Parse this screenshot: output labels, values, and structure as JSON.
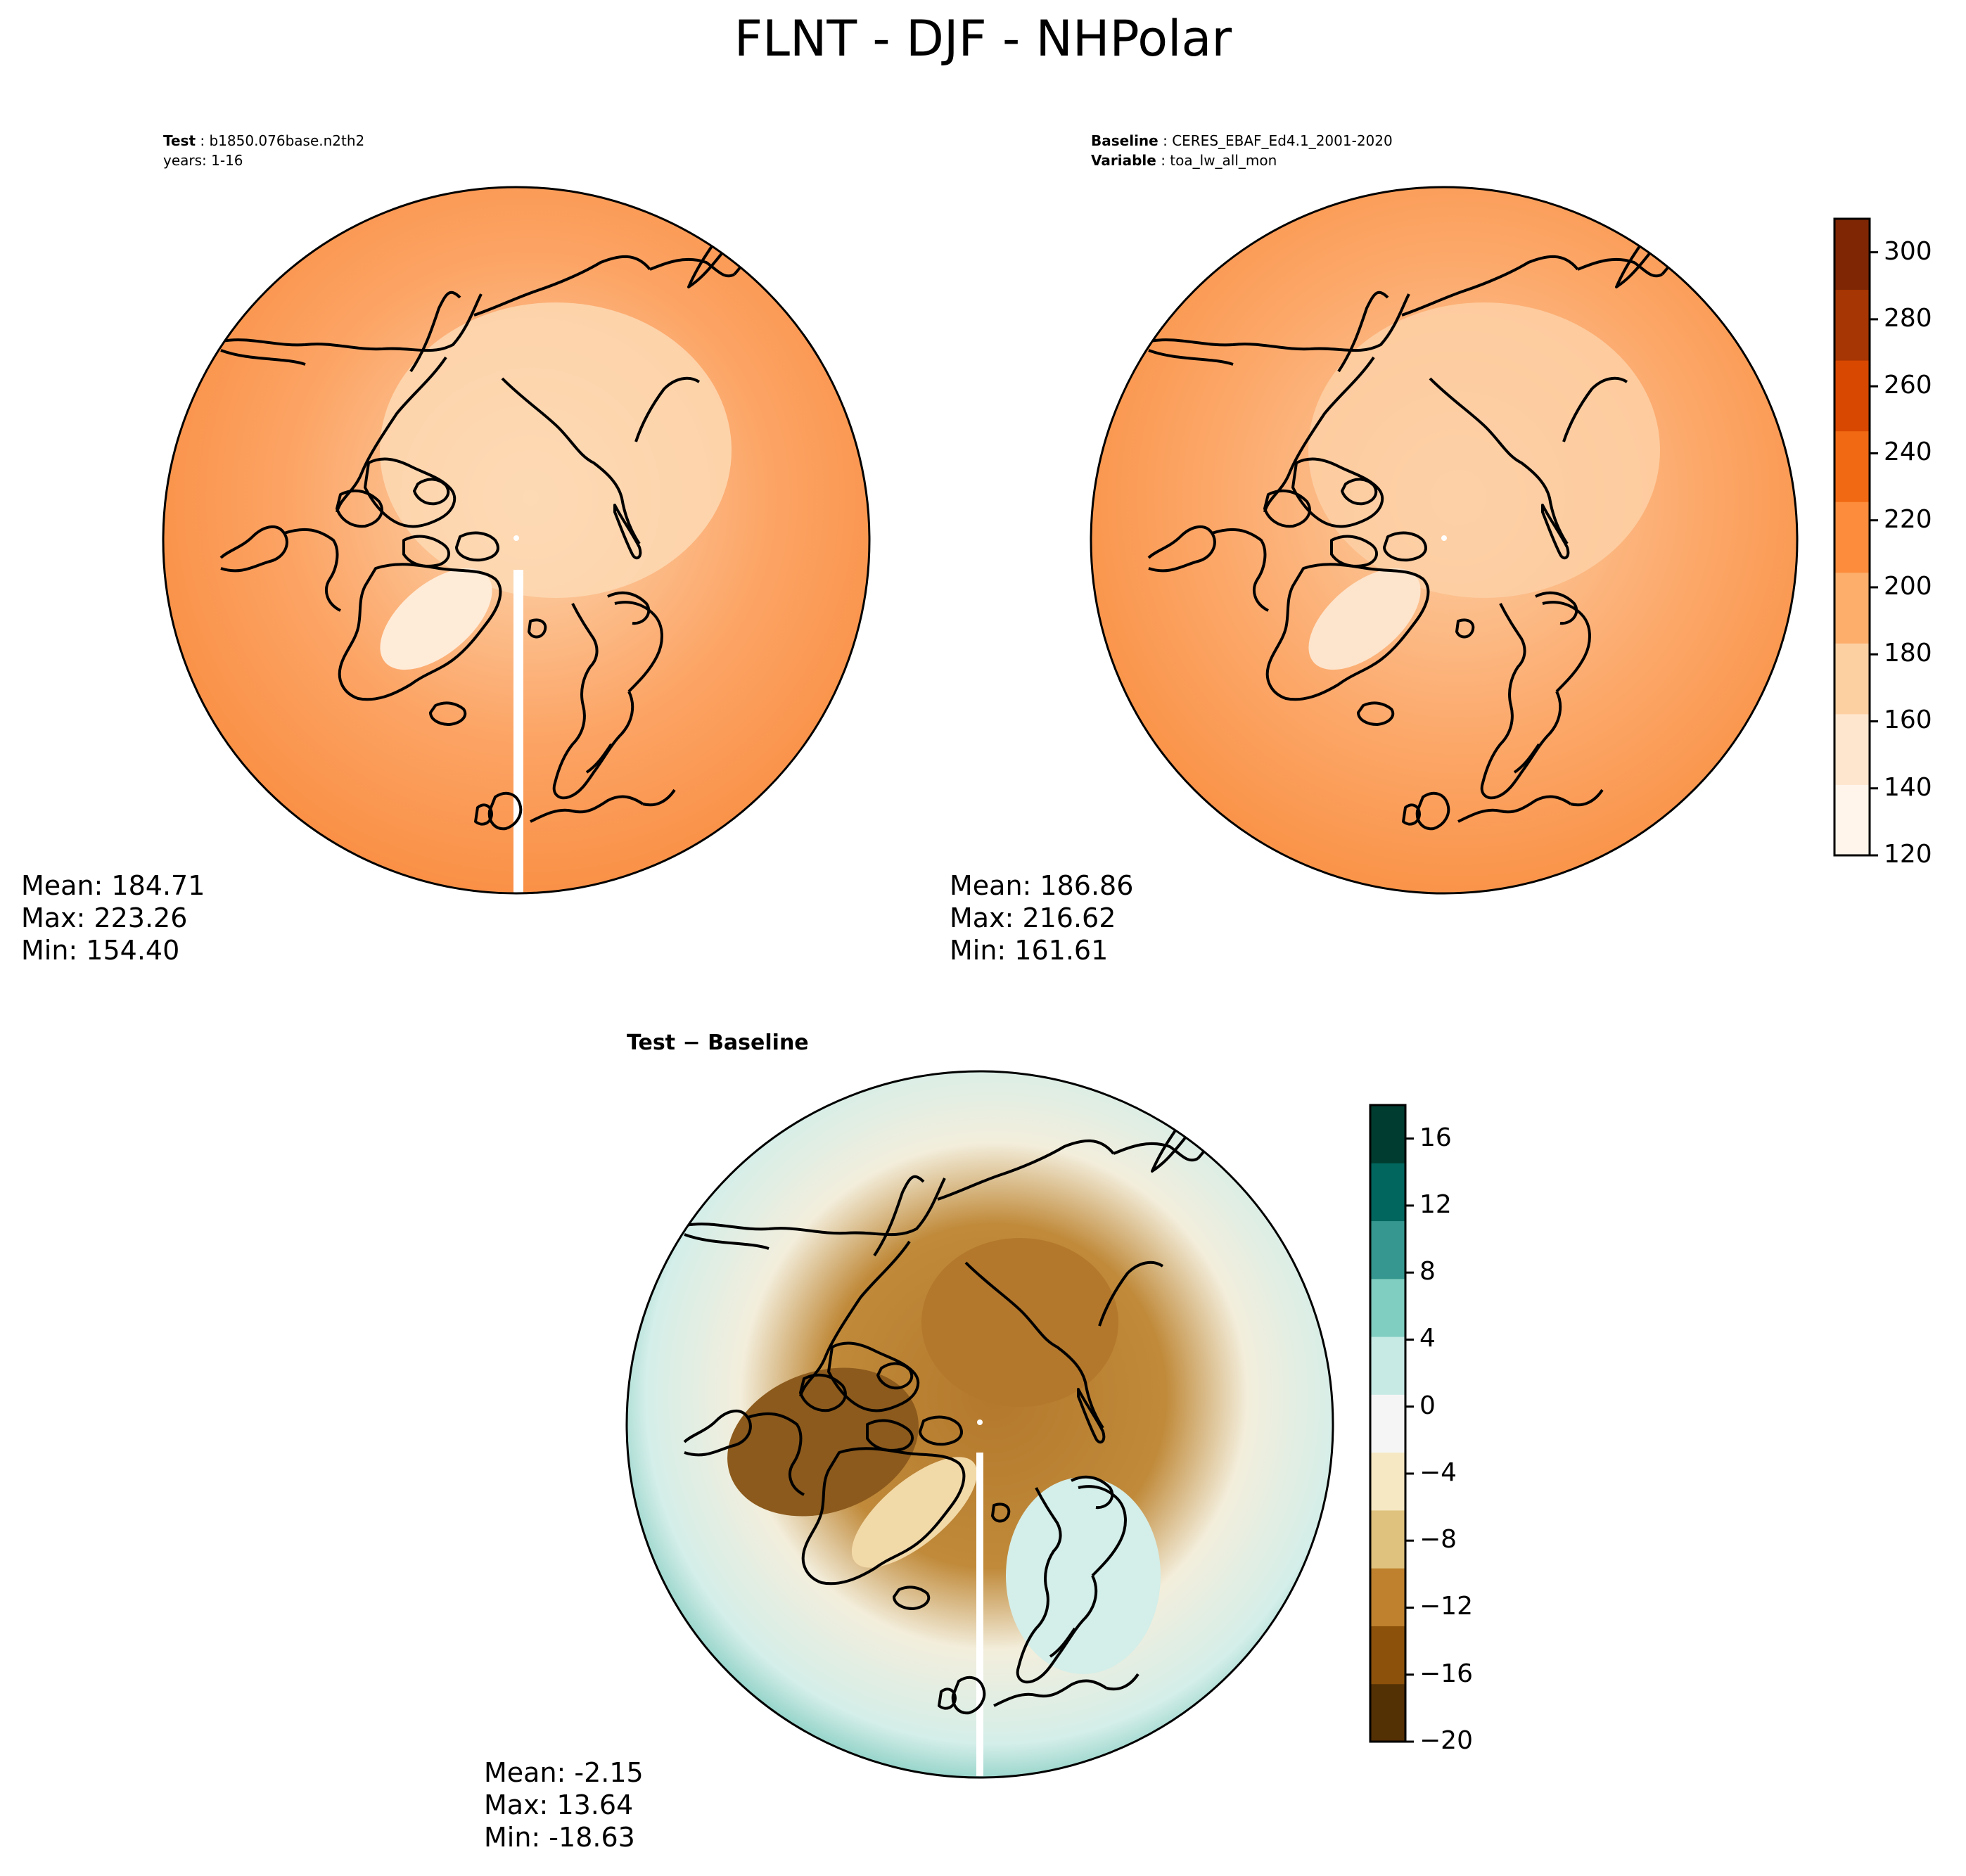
{
  "title": "FLNT - DJF - NHPolar",
  "panels": {
    "test": {
      "label": "Test",
      "name": "b1850.076base.n2th2",
      "years": "years: 1-16",
      "stats": [
        "Mean: 184.71",
        "Max: 223.26",
        "Min: 154.40"
      ]
    },
    "baseline": {
      "label": "Baseline",
      "name": "CERES_EBAF_Ed4.1_2001-2020",
      "variable_label": "Variable",
      "variable": "toa_lw_all_mon",
      "stats": [
        "Mean: 186.86",
        "Max: 216.62",
        "Min: 161.61"
      ]
    },
    "diff": {
      "title_a": "Test",
      "title_sep": " − ",
      "title_b": "Baseline",
      "stats": [
        "Mean: -2.15",
        "Max: 13.64",
        "Min: -18.63"
      ]
    }
  },
  "colorbars": {
    "field": {
      "range": [
        120,
        310
      ],
      "tick_values": [
        120,
        140,
        160,
        180,
        200,
        220,
        240,
        260,
        280,
        300
      ],
      "tick_labels": [
        "120",
        "140",
        "160",
        "180",
        "200",
        "220",
        "240",
        "260",
        "280",
        "300"
      ],
      "colormap": "Oranges",
      "colors": [
        "#fff5eb",
        "#fee6ce",
        "#fdd0a2",
        "#fdae6b",
        "#fd8d3c",
        "#f16913",
        "#d94801",
        "#a63603",
        "#7f2704"
      ]
    },
    "diff": {
      "range": [
        -20,
        18
      ],
      "tick_values": [
        -20,
        -16,
        -12,
        -8,
        -4,
        0,
        4,
        8,
        12,
        16
      ],
      "tick_labels": [
        "−20",
        "−16",
        "−12",
        "−8",
        "−4",
        "0",
        "4",
        "8",
        "12",
        "16"
      ],
      "colormap": "BrBG",
      "colors": [
        "#543005",
        "#8c510a",
        "#bf812d",
        "#dfc27d",
        "#f6e8c3",
        "#f5f5f5",
        "#c7eae5",
        "#80cdc1",
        "#35978f",
        "#01665e",
        "#003c30"
      ]
    }
  },
  "map_colors": {
    "test": {
      "ocean_mid": "#fca465",
      "ocean_edge": "#f98b3e",
      "arctic": "#fdd9b4",
      "greenland": "#feebd8"
    },
    "baseline": {
      "ocean_mid": "#fca86a",
      "ocean_edge": "#f98e40",
      "arctic": "#fdd0a6",
      "greenland": "#fde4cc"
    },
    "diff": {
      "edge": "#6cc3b5",
      "outer": "#d4eee9",
      "neutral": "#f3eedc",
      "brown": "#c08a3a",
      "darkbrown": "#7a4610",
      "canada": "#8c5a1c",
      "greenland": "#f2d9a8",
      "arctic": "#b4782c"
    }
  }
}
